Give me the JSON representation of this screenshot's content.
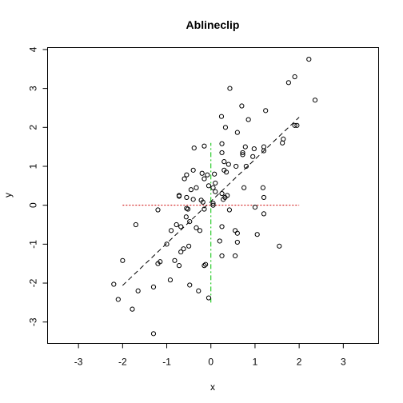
{
  "chart_data": {
    "type": "scatter",
    "title": "Ablineclip",
    "xlabel": "x",
    "ylabel": "y",
    "xlim": [
      -3.7,
      3.8
    ],
    "ylim": [
      -3.55,
      4.05
    ],
    "xticks": [
      -3,
      -2,
      -1,
      0,
      1,
      2,
      3
    ],
    "yticks": [
      -3,
      -2,
      -1,
      0,
      1,
      2,
      3,
      4
    ],
    "grid": false,
    "marker": "open-circle",
    "points": [
      [
        2.22,
        3.75
      ],
      [
        2.36,
        2.7
      ],
      [
        1.9,
        3.3
      ],
      [
        1.76,
        3.15
      ],
      [
        1.9,
        2.05
      ],
      [
        1.95,
        2.05
      ],
      [
        1.64,
        1.7
      ],
      [
        1.62,
        1.6
      ],
      [
        0.43,
        3.0
      ],
      [
        0.7,
        2.55
      ],
      [
        0.24,
        2.28
      ],
      [
        1.24,
        2.43
      ],
      [
        0.33,
        2.0
      ],
      [
        0.6,
        1.87
      ],
      [
        0.85,
        2.2
      ],
      [
        -0.38,
        1.47
      ],
      [
        -0.15,
        1.52
      ],
      [
        0.25,
        1.58
      ],
      [
        0.72,
        1.35
      ],
      [
        0.72,
        1.3
      ],
      [
        0.78,
        1.5
      ],
      [
        0.98,
        1.45
      ],
      [
        1.2,
        1.5
      ],
      [
        1.2,
        1.4
      ],
      [
        0.95,
        1.25
      ],
      [
        0.4,
        1.05
      ],
      [
        0.3,
        1.12
      ],
      [
        0.25,
        1.35
      ],
      [
        0.57,
        1.0
      ],
      [
        0.8,
        1.0
      ],
      [
        0.35,
        0.85
      ],
      [
        -0.4,
        0.9
      ],
      [
        -0.2,
        0.82
      ],
      [
        -0.08,
        0.78
      ],
      [
        0.08,
        0.8
      ],
      [
        0.3,
        0.9
      ],
      [
        -0.55,
        0.78
      ],
      [
        -0.6,
        0.68
      ],
      [
        -0.15,
        0.68
      ],
      [
        0.1,
        0.57
      ],
      [
        -0.05,
        0.5
      ],
      [
        0.05,
        0.45
      ],
      [
        -0.33,
        0.45
      ],
      [
        -0.45,
        0.4
      ],
      [
        0.1,
        0.35
      ],
      [
        0.25,
        0.3
      ],
      [
        0.37,
        0.25
      ],
      [
        0.32,
        0.2
      ],
      [
        0.28,
        0.15
      ],
      [
        -0.72,
        0.25
      ],
      [
        -0.72,
        0.23
      ],
      [
        -0.55,
        0.2
      ],
      [
        -0.4,
        0.15
      ],
      [
        -0.22,
        0.13
      ],
      [
        -0.18,
        0.08
      ],
      [
        0.05,
        0.0
      ],
      [
        0.05,
        0.05
      ],
      [
        -0.55,
        -0.08
      ],
      [
        -0.52,
        -0.1
      ],
      [
        -0.15,
        -0.1
      ],
      [
        0.42,
        -0.12
      ],
      [
        0.75,
        0.45
      ],
      [
        1.18,
        0.45
      ],
      [
        1.2,
        0.2
      ],
      [
        1.0,
        -0.05
      ],
      [
        1.2,
        -0.22
      ],
      [
        -1.2,
        -0.12
      ],
      [
        -0.56,
        -0.3
      ],
      [
        -0.48,
        -0.42
      ],
      [
        -0.33,
        -0.58
      ],
      [
        -0.68,
        -0.55
      ],
      [
        -0.78,
        -0.5
      ],
      [
        -0.9,
        -0.65
      ],
      [
        -0.25,
        -0.65
      ],
      [
        -1.7,
        -0.5
      ],
      [
        0.25,
        -0.55
      ],
      [
        0.55,
        -0.65
      ],
      [
        0.6,
        -0.72
      ],
      [
        1.05,
        -0.75
      ],
      [
        -1.0,
        -1.0
      ],
      [
        -0.5,
        -1.05
      ],
      [
        0.6,
        -0.95
      ],
      [
        1.55,
        -1.05
      ],
      [
        -0.62,
        -1.12
      ],
      [
        -0.68,
        -1.2
      ],
      [
        -0.82,
        -1.42
      ],
      [
        -0.72,
        -1.55
      ],
      [
        -1.15,
        -1.45
      ],
      [
        -1.2,
        -1.5
      ],
      [
        -0.12,
        -1.52
      ],
      [
        -0.15,
        -1.55
      ],
      [
        0.2,
        -0.92
      ],
      [
        0.25,
        -1.3
      ],
      [
        0.55,
        -1.3
      ],
      [
        -2.0,
        -1.42
      ],
      [
        -0.92,
        -1.92
      ],
      [
        -0.48,
        -2.05
      ],
      [
        -1.65,
        -2.2
      ],
      [
        -0.28,
        -2.2
      ],
      [
        -2.2,
        -2.03
      ],
      [
        -1.3,
        -2.1
      ],
      [
        -2.1,
        -2.42
      ],
      [
        -1.78,
        -2.67
      ],
      [
        -0.05,
        -2.38
      ],
      [
        -1.3,
        -3.3
      ]
    ],
    "lines": [
      {
        "kind": "regression",
        "x": [
          -2.0,
          2.0
        ],
        "y": [
          -2.06,
          2.26
        ],
        "color": "#000000",
        "dash": "dashed"
      },
      {
        "kind": "vertical",
        "x": [
          0,
          0
        ],
        "y": [
          -2.5,
          1.6
        ],
        "color": "#00c000",
        "dash": "dashdot"
      },
      {
        "kind": "horizontal",
        "x": [
          -2.0,
          2.0
        ],
        "y": [
          0,
          0
        ],
        "color": "#cc0000",
        "dash": "dotted"
      }
    ]
  }
}
